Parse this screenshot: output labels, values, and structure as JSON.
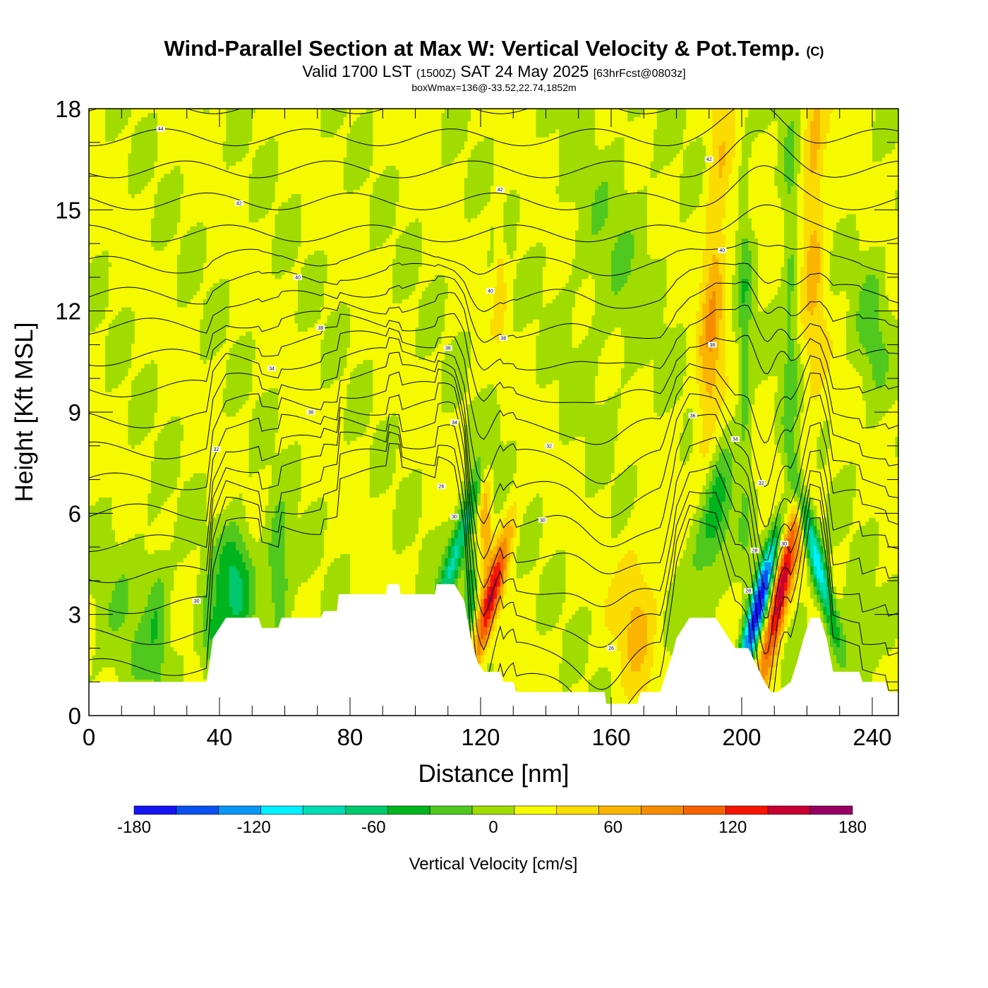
{
  "header": {
    "title": "Wind-Parallel Section at Max W: Vertical Velocity & Pot.Temp.",
    "copyright_mark": "(C)",
    "valid_prefix": "Valid 1700 LST",
    "valid_utc": "(1500Z)",
    "valid_date": "SAT 24 May 2025",
    "forecast_info": "[63hrFcst@0803z]",
    "box_info": "boxWmax=136@-33.52,22.74,1852m"
  },
  "chart_data": {
    "type": "heatmap",
    "xlabel": "Distance [nm]",
    "ylabel": "Height [Kft MSL]",
    "xlim": [
      0,
      248
    ],
    "ylim": [
      0,
      18
    ],
    "x_ticks": [
      0,
      40,
      80,
      120,
      160,
      200,
      240
    ],
    "y_ticks": [
      0,
      3,
      6,
      9,
      12,
      15,
      18
    ],
    "colorbar": {
      "label": "Vertical Velocity [cm/s]",
      "range": [
        -180,
        180
      ],
      "step": 20,
      "tick_values": [
        "-180",
        "-120",
        "-60",
        "0",
        "60",
        "120",
        "180"
      ],
      "colors": [
        "#1414f0",
        "#0a50f0",
        "#0a96f5",
        "#00f0ff",
        "#00dcb4",
        "#00c86e",
        "#00b41e",
        "#50c81e",
        "#a0dc00",
        "#f5fa00",
        "#fadc00",
        "#fab400",
        "#f58c00",
        "#f56400",
        "#f51400",
        "#c80032",
        "#960064"
      ]
    },
    "terrain_kft": [
      [
        0,
        1.0
      ],
      [
        36,
        1.0
      ],
      [
        37,
        1.6
      ],
      [
        38,
        2.3
      ],
      [
        40,
        2.6
      ],
      [
        42,
        2.9
      ],
      [
        52,
        2.9
      ],
      [
        53,
        2.6
      ],
      [
        58,
        2.6
      ],
      [
        59,
        2.9
      ],
      [
        71,
        2.9
      ],
      [
        72,
        3.1
      ],
      [
        76,
        3.1
      ],
      [
        76.5,
        3.6
      ],
      [
        91,
        3.6
      ],
      [
        91.5,
        3.9
      ],
      [
        95,
        3.9
      ],
      [
        95.5,
        3.6
      ],
      [
        106,
        3.6
      ],
      [
        106.5,
        3.9
      ],
      [
        112,
        3.9
      ],
      [
        115,
        3.4
      ],
      [
        117,
        2.3
      ],
      [
        119,
        1.6
      ],
      [
        121,
        1.3
      ],
      [
        126,
        1.3
      ],
      [
        127,
        1.0
      ],
      [
        130,
        1.0
      ],
      [
        131,
        0.7
      ],
      [
        158,
        0.7
      ],
      [
        158.5,
        0.35
      ],
      [
        168,
        0.35
      ],
      [
        169,
        0.7
      ],
      [
        175,
        0.7
      ],
      [
        176,
        1.0
      ],
      [
        177,
        1.3
      ],
      [
        178,
        1.6
      ],
      [
        179,
        1.9
      ],
      [
        180,
        2.3
      ],
      [
        182,
        2.6
      ],
      [
        184,
        2.9
      ],
      [
        192,
        2.9
      ],
      [
        194,
        2.6
      ],
      [
        196,
        2.3
      ],
      [
        198,
        2.0
      ],
      [
        202,
        2.0
      ],
      [
        204,
        1.6
      ],
      [
        207,
        1.0
      ],
      [
        209,
        0.7
      ],
      [
        211,
        0.7
      ],
      [
        215,
        1.0
      ],
      [
        217,
        1.6
      ],
      [
        219,
        2.3
      ],
      [
        221,
        2.9
      ],
      [
        224,
        2.9
      ],
      [
        226,
        2.3
      ],
      [
        228,
        1.3
      ],
      [
        236,
        1.3
      ],
      [
        237,
        1.0
      ],
      [
        244,
        1.0
      ],
      [
        245,
        0.7
      ],
      [
        248,
        0.7
      ]
    ],
    "theta_levels": [
      30,
      32,
      34,
      36,
      38,
      40,
      42,
      44
    ],
    "contour_labels": [
      "30",
      "32",
      "34",
      "36",
      "38",
      "40",
      "42",
      "44",
      "30",
      "32",
      "34",
      "36",
      "38",
      "40",
      "42",
      "26",
      "28",
      "30",
      "32",
      "34",
      "36",
      "38",
      "40",
      "42",
      "26",
      "30",
      "28"
    ],
    "w_features": [
      {
        "x": 123,
        "y": 3.4,
        "sx": 2.0,
        "sy": 1.6,
        "w": 110,
        "tilt": 2.5
      },
      {
        "x": 121.5,
        "y": 6.0,
        "sx": 1.3,
        "sy": 1.2,
        "w": 55,
        "tilt": 0
      },
      {
        "x": 212,
        "y": 3.8,
        "sx": 2.2,
        "sy": 1.8,
        "w": 136,
        "tilt": 2.0
      },
      {
        "x": 205,
        "y": 3.2,
        "sx": 2.0,
        "sy": 1.6,
        "w": -180,
        "tilt": 2.5
      },
      {
        "x": 223,
        "y": 4.6,
        "sx": 1.8,
        "sy": 1.7,
        "w": -120,
        "tilt": -2.5
      },
      {
        "x": 113,
        "y": 5.0,
        "sx": 2.0,
        "sy": 1.8,
        "w": -95,
        "tilt": 3.0
      },
      {
        "x": 117,
        "y": 3.6,
        "sx": 1.3,
        "sy": 1.0,
        "w": -60,
        "tilt": 0
      },
      {
        "x": 45,
        "y": 4.0,
        "sx": 4.0,
        "sy": 1.2,
        "w": -70,
        "tilt": 0
      },
      {
        "x": 58,
        "y": 4.2,
        "sx": 2.6,
        "sy": 1.3,
        "w": -50,
        "tilt": 0
      },
      {
        "x": 38,
        "y": 2.2,
        "sx": 3.0,
        "sy": 0.9,
        "w": -50,
        "tilt": 0
      },
      {
        "x": 21,
        "y": 3.0,
        "sx": 2.5,
        "sy": 1.5,
        "w": -30,
        "tilt": 0
      },
      {
        "x": 191,
        "y": 12.0,
        "sx": 2.6,
        "sy": 4.5,
        "w": 50,
        "tilt": 0.5
      },
      {
        "x": 222,
        "y": 15.0,
        "sx": 2.6,
        "sy": 3.5,
        "w": 45,
        "tilt": 0
      },
      {
        "x": 168,
        "y": 3.0,
        "sx": 4.5,
        "sy": 1.6,
        "w": 40,
        "tilt": 0
      },
      {
        "x": 126,
        "y": 13.0,
        "sx": 1.2,
        "sy": 1.2,
        "w": 32,
        "tilt": 0
      },
      {
        "x": 190,
        "y": 5.5,
        "sx": 4.0,
        "sy": 1.6,
        "w": -60,
        "tilt": 1.5
      },
      {
        "x": 201,
        "y": 11.0,
        "sx": 1.5,
        "sy": 4.0,
        "w": -35,
        "tilt": 0
      },
      {
        "x": 215,
        "y": 12.5,
        "sx": 1.8,
        "sy": 4.5,
        "w": -32,
        "tilt": 0
      },
      {
        "x": 235,
        "y": 2.0,
        "sx": 3.0,
        "sy": 1.2,
        "w": -35,
        "tilt": 0
      },
      {
        "x": 240,
        "y": 11.5,
        "sx": 3.5,
        "sy": 1.8,
        "w": -28,
        "tilt": 0
      },
      {
        "x": 160,
        "y": 13.5,
        "sx": 10.0,
        "sy": 2.8,
        "w": -18,
        "tilt": 0
      },
      {
        "x": 12,
        "y": 2.5,
        "sx": 9.0,
        "sy": 2.0,
        "w": -18,
        "tilt": 0
      }
    ]
  }
}
